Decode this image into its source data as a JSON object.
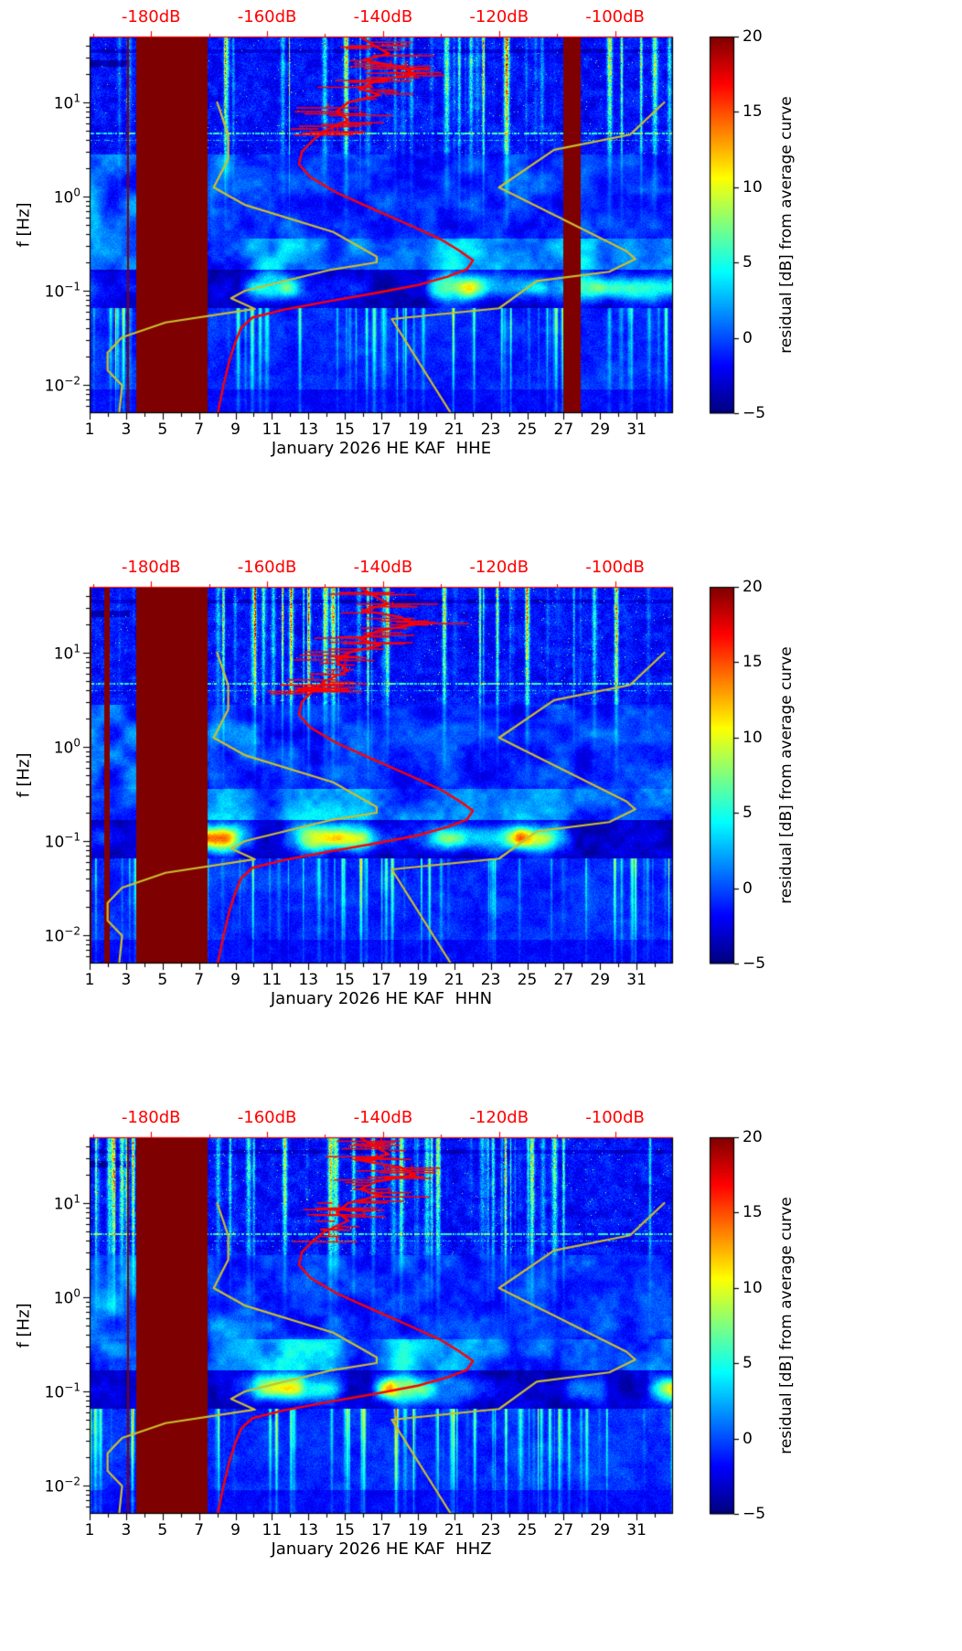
{
  "figure": {
    "background": "#ffffff",
    "top_axis": {
      "color": "#ff0000",
      "tick_values": [
        -180,
        -160,
        -140,
        -120,
        -100
      ],
      "tick_labels": [
        "-180dB",
        "-160dB",
        "-140dB",
        "-120dB",
        "-100dB"
      ],
      "range_db": [
        -190.6,
        -90.0
      ]
    },
    "colorbar": {
      "label": "residual [dB] from average curve",
      "tick_values": [
        20,
        15,
        10,
        5,
        0,
        -5
      ],
      "tick_labels": [
        "20",
        "15",
        "10",
        "5",
        "0",
        "−5"
      ],
      "range": [
        -5,
        20
      ],
      "colormap": "jet"
    }
  },
  "overlays": {
    "colors": {
      "station_psd": "#ff0000",
      "noise_models": "#ccbe2e"
    },
    "daily_curves_scatter": true,
    "station_psd_db_vs_hz": [
      [
        50,
        -144
      ],
      [
        40,
        -141.5
      ],
      [
        33,
        -139
      ],
      [
        28,
        -143.5
      ],
      [
        24,
        -137
      ],
      [
        20,
        -134.5
      ],
      [
        17,
        -141
      ],
      [
        14,
        -144
      ],
      [
        12,
        -140.5
      ],
      [
        10,
        -146
      ],
      [
        8,
        -148
      ],
      [
        6.5,
        -146
      ],
      [
        5,
        -150
      ],
      [
        4,
        -152
      ],
      [
        3,
        -154
      ],
      [
        2.2,
        -154.5
      ],
      [
        1.6,
        -152.5
      ],
      [
        1.1,
        -148
      ],
      [
        0.75,
        -142
      ],
      [
        0.5,
        -135.5
      ],
      [
        0.35,
        -130
      ],
      [
        0.27,
        -127
      ],
      [
        0.21,
        -124.5
      ],
      [
        0.17,
        -125.5
      ],
      [
        0.14,
        -129
      ],
      [
        0.115,
        -134
      ],
      [
        0.095,
        -141
      ],
      [
        0.078,
        -149
      ],
      [
        0.063,
        -157
      ],
      [
        0.052,
        -162.5
      ],
      [
        0.04,
        -164.5
      ],
      [
        0.028,
        -165.5
      ],
      [
        0.018,
        -166.5
      ],
      [
        0.01,
        -167.5
      ],
      [
        0.005,
        -168.5
      ]
    ],
    "nlnm_db_vs_hz": [
      [
        10,
        -168.6
      ],
      [
        4.5,
        -166.7
      ],
      [
        2.5,
        -166.7
      ],
      [
        1.25,
        -169.2
      ],
      [
        0.81,
        -163.7
      ],
      [
        0.42,
        -148.6
      ],
      [
        0.23,
        -141.1
      ],
      [
        0.2,
        -141.1
      ],
      [
        0.167,
        -149.0
      ],
      [
        0.1,
        -163.8
      ],
      [
        0.083,
        -166.2
      ],
      [
        0.064,
        -162.1
      ],
      [
        0.046,
        -177.5
      ],
      [
        0.032,
        -185.0
      ],
      [
        0.022,
        -187.5
      ],
      [
        0.0143,
        -187.5
      ],
      [
        0.0099,
        -185.0
      ],
      [
        0.005,
        -185.5
      ]
    ],
    "nhnm_db_vs_hz": [
      [
        10,
        -91.5
      ],
      [
        4.55,
        -97.4
      ],
      [
        3.13,
        -110.5
      ],
      [
        1.25,
        -120.0
      ],
      [
        0.263,
        -98.0
      ],
      [
        0.217,
        -96.5
      ],
      [
        0.159,
        -101.0
      ],
      [
        0.127,
        -113.5
      ],
      [
        0.065,
        -120.0
      ],
      [
        0.05,
        -138.5
      ],
      [
        0.005,
        -128.3
      ]
    ]
  },
  "chart_data": [
    {
      "type": "heatmap",
      "channel": "HHE",
      "xlabel": "January 2026 HE KAF  HHE",
      "ylabel": "f [Hz]",
      "value_label": "residual [dB] from average curve",
      "x_tick_values": [
        1,
        3,
        5,
        7,
        9,
        11,
        13,
        15,
        17,
        19,
        21,
        23,
        25,
        27,
        29,
        31
      ],
      "x_tick_labels": [
        "1",
        "3",
        "5",
        "7",
        "9",
        "11",
        "13",
        "15",
        "17",
        "19",
        "21",
        "23",
        "25",
        "27",
        "29",
        "31"
      ],
      "x_range_days": [
        1,
        33
      ],
      "y_tick_values_hz": [
        10,
        1,
        0.1,
        0.01
      ],
      "y_tick_labels": [
        {
          "base": "10",
          "exp": "1"
        },
        {
          "base": "10",
          "exp": "0"
        },
        {
          "base": "10",
          "exp": "−1"
        },
        {
          "base": "10",
          "exp": "−2"
        }
      ],
      "y_range_hz": [
        0.005,
        50
      ],
      "value_range": [
        -5,
        20
      ],
      "gaps_days": [
        [
          3.08,
          3.14
        ],
        [
          3.55,
          7.45
        ],
        [
          27.0,
          27.95
        ]
      ],
      "seed": 11,
      "overlays": "shared"
    },
    {
      "type": "heatmap",
      "channel": "HHN",
      "xlabel": "January 2026 HE KAF  HHN",
      "ylabel": "f [Hz]",
      "value_label": "residual [dB] from average curve",
      "x_tick_values": [
        1,
        3,
        5,
        7,
        9,
        11,
        13,
        15,
        17,
        19,
        21,
        23,
        25,
        27,
        29,
        31
      ],
      "x_tick_labels": [
        "1",
        "3",
        "5",
        "7",
        "9",
        "11",
        "13",
        "15",
        "17",
        "19",
        "21",
        "23",
        "25",
        "27",
        "29",
        "31"
      ],
      "x_range_days": [
        1,
        33
      ],
      "y_tick_values_hz": [
        10,
        1,
        0.1,
        0.01
      ],
      "y_tick_labels": [
        {
          "base": "10",
          "exp": "1"
        },
        {
          "base": "10",
          "exp": "0"
        },
        {
          "base": "10",
          "exp": "−1"
        },
        {
          "base": "10",
          "exp": "−2"
        }
      ],
      "y_range_hz": [
        0.005,
        50
      ],
      "value_range": [
        -5,
        20
      ],
      "gaps_days": [
        [
          1.0,
          1.12
        ],
        [
          1.82,
          2.1
        ],
        [
          3.55,
          7.45
        ]
      ],
      "seed": 22,
      "overlays": "shared"
    },
    {
      "type": "heatmap",
      "channel": "HHZ",
      "xlabel": "January 2026 HE KAF  HHZ",
      "ylabel": "f [Hz]",
      "value_label": "residual [dB] from average curve",
      "x_tick_values": [
        1,
        3,
        5,
        7,
        9,
        11,
        13,
        15,
        17,
        19,
        21,
        23,
        25,
        27,
        29,
        31
      ],
      "x_tick_labels": [
        "1",
        "3",
        "5",
        "7",
        "9",
        "11",
        "13",
        "15",
        "17",
        "19",
        "21",
        "23",
        "25",
        "27",
        "29",
        "31"
      ],
      "x_range_days": [
        1,
        33
      ],
      "y_tick_values_hz": [
        10,
        1,
        0.1,
        0.01
      ],
      "y_tick_labels": [
        {
          "base": "10",
          "exp": "1"
        },
        {
          "base": "10",
          "exp": "0"
        },
        {
          "base": "10",
          "exp": "−1"
        },
        {
          "base": "10",
          "exp": "−2"
        }
      ],
      "y_range_hz": [
        0.005,
        50
      ],
      "value_range": [
        -5,
        20
      ],
      "gaps_days": [
        [
          3.08,
          3.14
        ],
        [
          3.55,
          7.45
        ]
      ],
      "seed": 33,
      "overlays": "shared"
    }
  ]
}
